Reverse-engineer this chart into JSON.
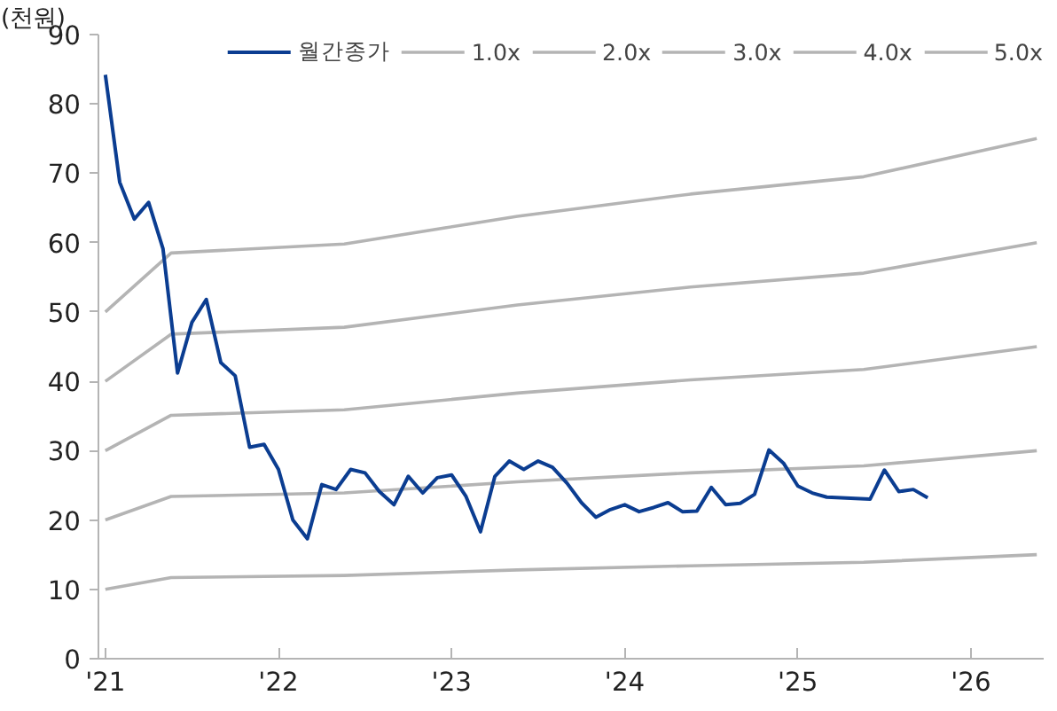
{
  "chart_data": {
    "type": "line",
    "ylabel": "(천원)",
    "legend": "top",
    "grid": false,
    "marker": "none",
    "line_style": "solid",
    "xlim": [
      2020.96,
      2026.42
    ],
    "ylim": [
      0,
      90
    ],
    "xticks": [
      {
        "value": 2021,
        "label": "'21"
      },
      {
        "value": 2022,
        "label": "'22"
      },
      {
        "value": 2023,
        "label": "'23"
      },
      {
        "value": 2024,
        "label": "'24"
      },
      {
        "value": 2025,
        "label": "'25"
      },
      {
        "value": 2026,
        "label": "'26"
      }
    ],
    "yticks": [
      0,
      10,
      20,
      30,
      40,
      50,
      60,
      70,
      80,
      90
    ],
    "series": [
      {
        "name": "월간종가",
        "color": "#0b3d91",
        "x": [
          2021.0,
          2021.083,
          2021.167,
          2021.25,
          2021.333,
          2021.417,
          2021.5,
          2021.583,
          2021.667,
          2021.75,
          2021.833,
          2021.917,
          2022.0,
          2022.083,
          2022.167,
          2022.25,
          2022.333,
          2022.417,
          2022.5,
          2022.583,
          2022.667,
          2022.75,
          2022.833,
          2022.917,
          2023.0,
          2023.083,
          2023.167,
          2023.25,
          2023.333,
          2023.417,
          2023.5,
          2023.583,
          2023.667,
          2023.75,
          2023.833,
          2023.917,
          2024.0,
          2024.083,
          2024.167,
          2024.25,
          2024.333,
          2024.417,
          2024.5,
          2024.583,
          2024.667,
          2024.75,
          2024.833,
          2024.917,
          2025.0,
          2025.083,
          2025.167,
          2025.25,
          2025.333,
          2025.417,
          2025.5,
          2025.583,
          2025.667,
          2025.75
        ],
        "values": [
          84.2,
          68.7,
          63.4,
          65.8,
          59.1,
          41.2,
          48.5,
          51.8,
          42.7,
          40.8,
          30.5,
          30.9,
          27.3,
          20.0,
          17.3,
          25.1,
          24.4,
          27.3,
          26.8,
          24.1,
          22.2,
          26.3,
          23.9,
          26.1,
          26.5,
          23.4,
          18.3,
          26.3,
          28.5,
          27.3,
          28.5,
          27.6,
          25.3,
          22.5,
          20.4,
          21.5,
          22.2,
          21.2,
          21.8,
          22.5,
          21.2,
          21.3,
          24.7,
          22.2,
          22.4,
          23.7,
          30.1,
          28.2,
          24.9,
          23.9,
          23.3,
          23.2,
          23.1,
          23.0,
          27.2,
          24.1,
          24.4,
          23.2
        ]
      },
      {
        "name": "1.0x",
        "color": "#b4b4b4",
        "x": [
          2021.0,
          2021.38,
          2022.38,
          2023.38,
          2024.38,
          2025.38,
          2026.38
        ],
        "values": [
          10,
          11.7,
          12,
          12.8,
          13.4,
          13.9,
          15
        ]
      },
      {
        "name": "2.0x",
        "color": "#b4b4b4",
        "x": [
          2021.0,
          2021.38,
          2022.38,
          2023.38,
          2024.38,
          2025.38,
          2026.38
        ],
        "values": [
          20,
          23.4,
          23.9,
          25.5,
          26.8,
          27.8,
          30
        ]
      },
      {
        "name": "3.0x",
        "color": "#b4b4b4",
        "x": [
          2021.0,
          2021.38,
          2022.38,
          2023.38,
          2024.38,
          2025.38,
          2026.38
        ],
        "values": [
          30,
          35.1,
          35.9,
          38.3,
          40.2,
          41.7,
          45
        ]
      },
      {
        "name": "4.0x",
        "color": "#b4b4b4",
        "x": [
          2021.0,
          2021.38,
          2022.38,
          2023.38,
          2024.38,
          2025.38,
          2026.38
        ],
        "values": [
          40,
          46.8,
          47.8,
          51,
          53.6,
          55.6,
          60
        ]
      },
      {
        "name": "5.0x",
        "color": "#b4b4b4",
        "x": [
          2021.0,
          2021.38,
          2022.38,
          2023.38,
          2024.38,
          2025.38,
          2026.38
        ],
        "values": [
          50,
          58.5,
          59.8,
          63.8,
          67,
          69.5,
          75
        ]
      }
    ]
  }
}
